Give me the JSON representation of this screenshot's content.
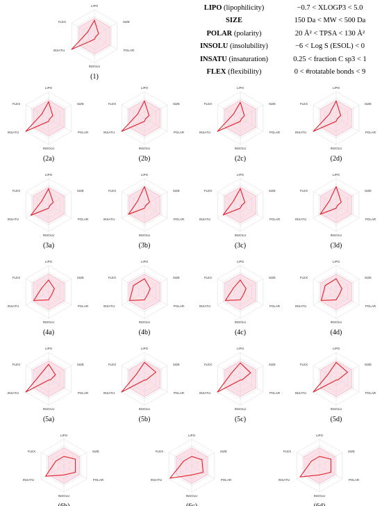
{
  "legend": [
    {
      "key": "LIPO",
      "desc": " (lipophilicity)",
      "range": "−0.7 < XLOGP3 < 5.0"
    },
    {
      "key": "SIZE",
      "desc": "",
      "range": "150 Da < MW < 500 Da"
    },
    {
      "key": "POLAR",
      "desc": " (polarity)",
      "range": "20 Å² < TPSA < 130 Å²"
    },
    {
      "key": "INSOLU",
      "desc": " (insolubility)",
      "range": "−6 < Log S (ESOL) < 0"
    },
    {
      "key": "INSATU",
      "desc": " (insaturation)",
      "range": "0.25 < fraction C sp3 < 1"
    },
    {
      "key": "FLEX",
      "desc": " (flexibility)",
      "range": "0 < #rotatable bonds < 9"
    }
  ],
  "colors": {
    "polygon": "#e0202a",
    "zone_fill": "#f7c9d6",
    "zone_stroke": "#f4a9bd",
    "grid": "#d9d9d9"
  },
  "chart_data": {
    "type": "radar",
    "axes": [
      "LIPO",
      "SIZE",
      "POLAR",
      "INSOLU",
      "INSATU",
      "FLEX"
    ],
    "optimal_zone": [
      0.68,
      0.68,
      0.68,
      0.68,
      0.68,
      0.68
    ],
    "scale_max": 1.0,
    "panels": [
      {
        "label": "(1)",
        "values": [
          0.6,
          0.18,
          0.05,
          0.12,
          1.0,
          0.3
        ]
      },
      {
        "label": "(2a)",
        "values": [
          0.62,
          0.18,
          0.05,
          0.12,
          1.0,
          0.3
        ]
      },
      {
        "label": "(2b)",
        "values": [
          0.65,
          0.2,
          0.05,
          0.12,
          1.0,
          0.3
        ]
      },
      {
        "label": "(2c)",
        "values": [
          0.6,
          0.18,
          0.05,
          0.12,
          1.0,
          0.3
        ]
      },
      {
        "label": "(2d)",
        "values": [
          0.65,
          0.2,
          0.05,
          0.12,
          1.0,
          0.3
        ]
      },
      {
        "label": "(3a)",
        "values": [
          0.62,
          0.2,
          0.05,
          0.12,
          0.78,
          0.3
        ]
      },
      {
        "label": "(3b)",
        "values": [
          0.7,
          0.22,
          0.05,
          0.12,
          0.7,
          0.3
        ]
      },
      {
        "label": "(3c)",
        "values": [
          0.62,
          0.2,
          0.05,
          0.12,
          0.75,
          0.3
        ]
      },
      {
        "label": "(3d)",
        "values": [
          0.7,
          0.22,
          0.05,
          0.12,
          0.7,
          0.3
        ]
      },
      {
        "label": "(4a)",
        "values": [
          0.45,
          0.25,
          0.15,
          0.3,
          0.65,
          0.3
        ]
      },
      {
        "label": "(4b)",
        "values": [
          0.5,
          0.25,
          0.15,
          0.3,
          0.65,
          0.48
        ]
      },
      {
        "label": "(4c)",
        "values": [
          0.45,
          0.25,
          0.15,
          0.3,
          0.65,
          0.3
        ]
      },
      {
        "label": "(4d)",
        "values": [
          0.5,
          0.25,
          0.15,
          0.3,
          0.65,
          0.48
        ]
      },
      {
        "label": "(5a)",
        "values": [
          0.55,
          0.3,
          0.08,
          0.05,
          1.0,
          0.35
        ]
      },
      {
        "label": "(5b)",
        "values": [
          0.62,
          0.5,
          0.08,
          0.05,
          1.0,
          0.35
        ]
      },
      {
        "label": "(5c)",
        "values": [
          0.6,
          0.45,
          0.08,
          0.05,
          1.0,
          0.4
        ]
      },
      {
        "label": "(5d)",
        "values": [
          0.62,
          0.5,
          0.08,
          0.05,
          1.0,
          0.35
        ]
      },
      {
        "label": "(6b)",
        "values": [
          0.35,
          0.5,
          0.5,
          0.35,
          0.8,
          0.35
        ]
      },
      {
        "label": "(6c)",
        "values": [
          0.35,
          0.45,
          0.5,
          0.35,
          0.95,
          0.35
        ]
      },
      {
        "label": "(6d)",
        "values": [
          0.35,
          0.5,
          0.5,
          0.35,
          0.85,
          0.35
        ]
      }
    ]
  }
}
